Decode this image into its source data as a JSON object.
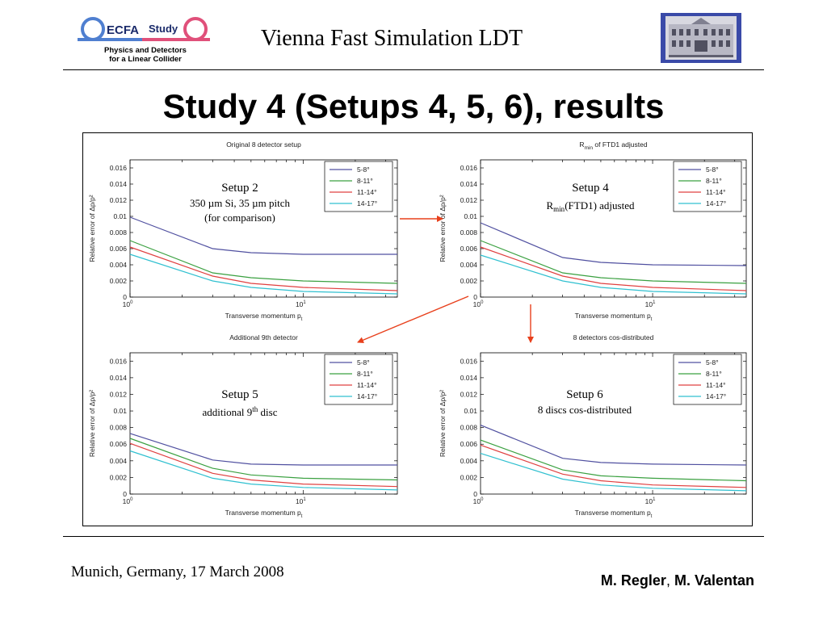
{
  "header": {
    "title": "Vienna Fast Simulation LDT",
    "logo": {
      "brand": "ECFA",
      "word": "Study",
      "line1": "Physics and Detectors",
      "line2": "for a Linear Collider",
      "color_blue": "#4f7fd0",
      "color_pink": "#e0507a"
    },
    "seal_icon": "institute-building-seal"
  },
  "slide_title": "Study 4 (Setups 4, 5, 6), results",
  "footer": {
    "left": "Munich, Germany, 17 March 2008",
    "author1": "M. Regler",
    "separator": ", ",
    "author2": "M. Valentan"
  },
  "annotations": [
    {
      "title": "Setup 2",
      "lines": [
        "350 µm Si, 35 µm pitch",
        "(for comparison)"
      ]
    },
    {
      "title": "Setup 4",
      "lines": [
        "R",
        "min",
        "(FTD1) adjusted"
      ]
    },
    {
      "title": "Setup 5",
      "lines": [
        "additional 9",
        "th",
        " disc"
      ]
    },
    {
      "title": "Setup 6",
      "lines": [
        "8 discs cos-distributed"
      ]
    }
  ],
  "arrow_color": "#e8401c",
  "chart_data": [
    {
      "type": "line",
      "title": "Original 8 detector setup",
      "xlabel": "Transverse momentum p",
      "xlabel_sub": "t",
      "ylabel": "Relative error of Δp/p²",
      "xscale": "log",
      "xlim": [
        1,
        35
      ],
      "ylim": [
        0,
        0.017
      ],
      "yticks": [
        "0",
        "0.002",
        "0.004",
        "0.006",
        "0.008",
        "0.01",
        "0.012",
        "0.014",
        "0.016"
      ],
      "xticks": [
        "10",
        "10"
      ],
      "xtick_exponents": [
        "0",
        "1"
      ],
      "legend_position": "top-right",
      "x": [
        1,
        3,
        5,
        10,
        35
      ],
      "series": [
        {
          "name": "5-8°",
          "color": "#5050a0",
          "values": [
            0.0099,
            0.006,
            0.0055,
            0.0053,
            0.0053
          ]
        },
        {
          "name": "8-11°",
          "color": "#3aa040",
          "values": [
            0.007,
            0.003,
            0.0024,
            0.002,
            0.0017
          ]
        },
        {
          "name": "11-14°",
          "color": "#e04040",
          "values": [
            0.0062,
            0.0026,
            0.0017,
            0.0012,
            0.0008
          ]
        },
        {
          "name": "14-17°",
          "color": "#30c0d0",
          "values": [
            0.0053,
            0.002,
            0.0012,
            0.0007,
            0.0004
          ]
        }
      ]
    },
    {
      "type": "line",
      "title": "R",
      "title_sub": "min",
      "title_rest": " of FTD1 adjusted",
      "xlabel": "Transverse momentum p",
      "xlabel_sub": "t",
      "ylabel": "Relative error of Δp/p²",
      "xscale": "log",
      "xlim": [
        1,
        35
      ],
      "ylim": [
        0,
        0.017
      ],
      "yticks": [
        "0",
        "0.002",
        "0.004",
        "0.006",
        "0.008",
        "0.01",
        "0.012",
        "0.014",
        "0.016"
      ],
      "xticks": [
        "10",
        "10"
      ],
      "xtick_exponents": [
        "0",
        "1"
      ],
      "legend_position": "top-right",
      "x": [
        1,
        3,
        5,
        10,
        35
      ],
      "series": [
        {
          "name": "5-8°",
          "color": "#5050a0",
          "values": [
            0.0092,
            0.0049,
            0.0043,
            0.004,
            0.0039
          ]
        },
        {
          "name": "8-11°",
          "color": "#3aa040",
          "values": [
            0.007,
            0.003,
            0.0024,
            0.002,
            0.0017
          ]
        },
        {
          "name": "11-14°",
          "color": "#e04040",
          "values": [
            0.0062,
            0.0026,
            0.0017,
            0.0012,
            0.0008
          ]
        },
        {
          "name": "14-17°",
          "color": "#30c0d0",
          "values": [
            0.0052,
            0.002,
            0.0012,
            0.0007,
            0.0004
          ]
        }
      ]
    },
    {
      "type": "line",
      "title": "Additional 9th detector",
      "xlabel": "Transverse momentum p",
      "xlabel_sub": "t",
      "ylabel": "Relative error of Δp/p²",
      "xscale": "log",
      "xlim": [
        1,
        35
      ],
      "ylim": [
        0,
        0.017
      ],
      "yticks": [
        "0",
        "0.002",
        "0.004",
        "0.006",
        "0.008",
        "0.01",
        "0.012",
        "0.014",
        "0.016"
      ],
      "xticks": [
        "10",
        "10"
      ],
      "xtick_exponents": [
        "0",
        "1"
      ],
      "legend_position": "top-right",
      "x": [
        1,
        3,
        5,
        10,
        35
      ],
      "series": [
        {
          "name": "5-8°",
          "color": "#5050a0",
          "values": [
            0.0073,
            0.0041,
            0.0036,
            0.0035,
            0.0035
          ]
        },
        {
          "name": "8-11°",
          "color": "#3aa040",
          "values": [
            0.0067,
            0.0031,
            0.0023,
            0.0019,
            0.0017
          ]
        },
        {
          "name": "11-14°",
          "color": "#e04040",
          "values": [
            0.0061,
            0.0025,
            0.0017,
            0.0012,
            0.0009
          ]
        },
        {
          "name": "14-17°",
          "color": "#30c0d0",
          "values": [
            0.0052,
            0.0019,
            0.0012,
            0.0008,
            0.0005
          ]
        }
      ]
    },
    {
      "type": "line",
      "title": "8 detectors cos-distributed",
      "xlabel": "Transverse momentum p",
      "xlabel_sub": "t",
      "ylabel": "Relative error of Δp/p²",
      "xscale": "log",
      "xlim": [
        1,
        35
      ],
      "ylim": [
        0,
        0.017
      ],
      "yticks": [
        "0",
        "0.002",
        "0.004",
        "0.006",
        "0.008",
        "0.01",
        "0.012",
        "0.014",
        "0.016"
      ],
      "xticks": [
        "10",
        "10"
      ],
      "xtick_exponents": [
        "0",
        "1"
      ],
      "legend_position": "top-right",
      "x": [
        1,
        3,
        5,
        10,
        35
      ],
      "series": [
        {
          "name": "5-8°",
          "color": "#5050a0",
          "values": [
            0.0083,
            0.0043,
            0.0038,
            0.0036,
            0.0035
          ]
        },
        {
          "name": "8-11°",
          "color": "#3aa040",
          "values": [
            0.0065,
            0.0029,
            0.0022,
            0.0019,
            0.0016
          ]
        },
        {
          "name": "11-14°",
          "color": "#e04040",
          "values": [
            0.0059,
            0.0024,
            0.0016,
            0.0011,
            0.0008
          ]
        },
        {
          "name": "14-17°",
          "color": "#30c0d0",
          "values": [
            0.0049,
            0.0018,
            0.0011,
            0.0007,
            0.0004
          ]
        }
      ]
    }
  ]
}
